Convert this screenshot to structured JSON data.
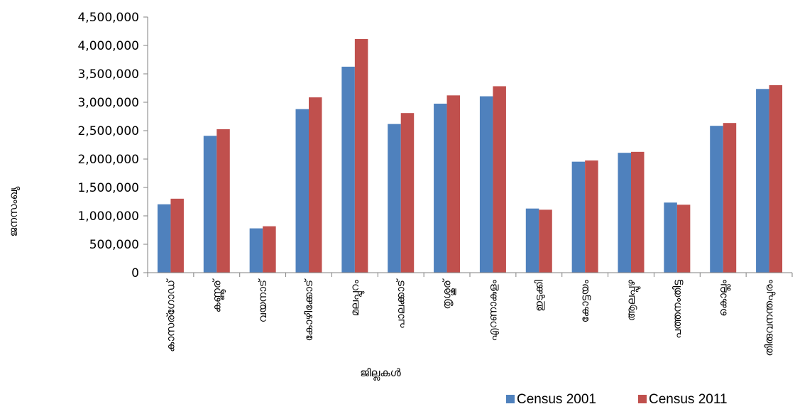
{
  "chart_data": {
    "type": "bar",
    "categories": [
      "കാസര്ഗോഡ്",
      "കണ്ണൂര്",
      "വയനാട്",
      "കോഴിക്കോട്",
      "മലപ്പുറം",
      "പാലക്കാട്",
      "തൃശ്ശൂര്",
      "എറണാകുളം",
      "ഇടുക്കി",
      "കോട്ടയം",
      "ആലപ്പുഴ",
      "പത്തനംതിട്ട",
      "കൊല്ലം",
      "തിരുവനന്തപുരം"
    ],
    "series": [
      {
        "name": "Census 2001",
        "color": "#4f81bd",
        "values": [
          1204000,
          2409000,
          780000,
          2879000,
          3626000,
          2617000,
          2975000,
          3105000,
          1129000,
          1954000,
          2110000,
          1234000,
          2585000,
          3234000
        ]
      },
      {
        "name": "Census 2011",
        "color": "#c0504d",
        "values": [
          1302000,
          2525000,
          817000,
          3086000,
          4113000,
          2810000,
          3121000,
          3282000,
          1108000,
          1975000,
          2127000,
          1196000,
          2635000,
          3301000
        ]
      }
    ],
    "yticks": [
      "0",
      "500,000",
      "1,000,000",
      "1,500,000",
      "2,000,000",
      "2,500,000",
      "3,000,000",
      "3,500,000",
      "4,000,000",
      "4,500,000"
    ],
    "ylim": [
      0,
      4500000
    ],
    "xlabel": "ജില്ലകൾ",
    "ylabel": "ജനസംഖ്യ",
    "legend_position": "bottom-right",
    "grid": false
  }
}
